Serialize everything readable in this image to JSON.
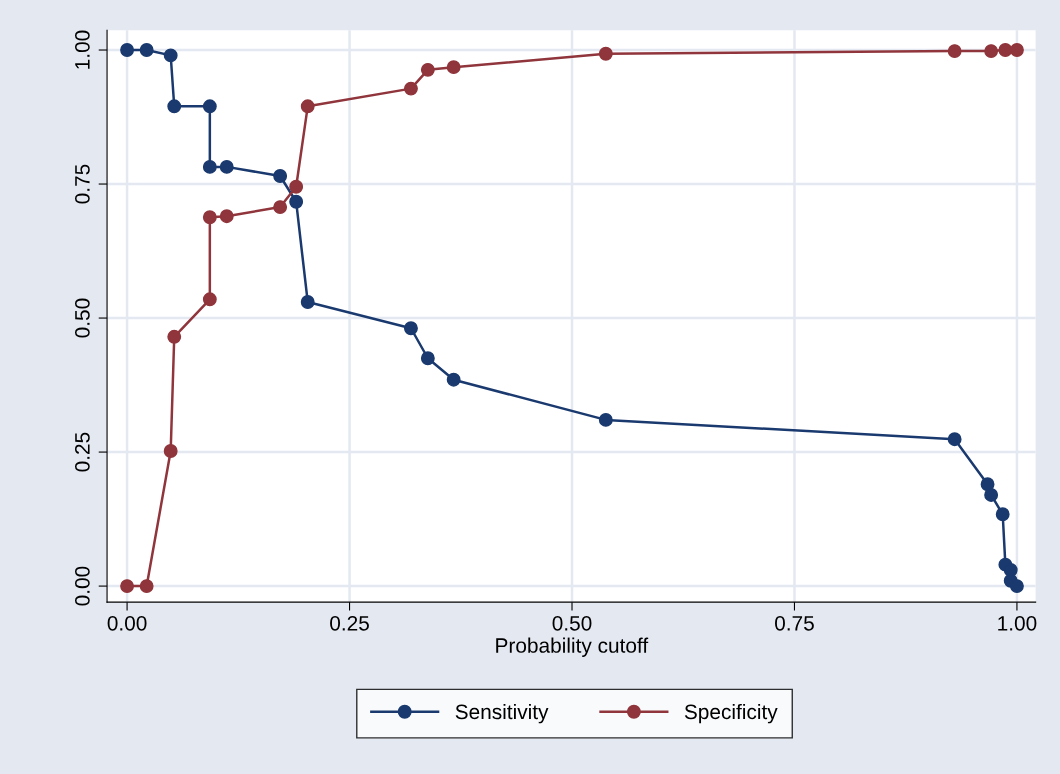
{
  "chart_data": {
    "type": "line",
    "xlabel": "Probability cutoff",
    "x": [
      0,
      0.022,
      0.049,
      0.053,
      0.093,
      0.093,
      0.112,
      0.172,
      0.19,
      0.203,
      0.319,
      0.338,
      0.367,
      0.538,
      0.93,
      0.967,
      0.971,
      0.984,
      0.987,
      0.993,
      0.993,
      1.0
    ],
    "series": [
      {
        "name": "Sensitivity",
        "color": "#1a3a6f",
        "values": [
          1.0,
          1.0,
          0.99,
          0.895,
          0.895,
          0.782,
          0.782,
          0.765,
          0.717,
          0.53,
          0.481,
          0.425,
          0.385,
          0.31,
          0.274,
          0.19,
          0.17,
          0.134,
          0.04,
          0.03,
          0.01,
          0.0
        ]
      },
      {
        "name": "Specificity",
        "color": "#90353b",
        "values": [
          0.0,
          0.0,
          0.252,
          0.465,
          0.535,
          0.688,
          0.69,
          0.707,
          0.745,
          0.895,
          0.928,
          0.963,
          0.968,
          0.993,
          0.998,
          null,
          0.998,
          null,
          1.0,
          null,
          null,
          1.0
        ]
      }
    ],
    "xlim": [
      -0.0225,
      1.021
    ],
    "ylim": [
      -0.03,
      1.037
    ],
    "xticks": [
      {
        "value": 0,
        "label": "0.00"
      },
      {
        "value": 0.25,
        "label": "0.25"
      },
      {
        "value": 0.5,
        "label": "0.50"
      },
      {
        "value": 0.75,
        "label": "0.75"
      },
      {
        "value": 1,
        "label": "1.00"
      }
    ],
    "yticks": [
      {
        "value": 0,
        "label": "0.00"
      },
      {
        "value": 0.25,
        "label": "0.25"
      },
      {
        "value": 0.5,
        "label": "0.50"
      },
      {
        "value": 0.75,
        "label": "0.75"
      },
      {
        "value": 1,
        "label": "1.00"
      }
    ],
    "grid": true,
    "legend": "bottom",
    "marker": "circle",
    "line_style": "solid"
  }
}
